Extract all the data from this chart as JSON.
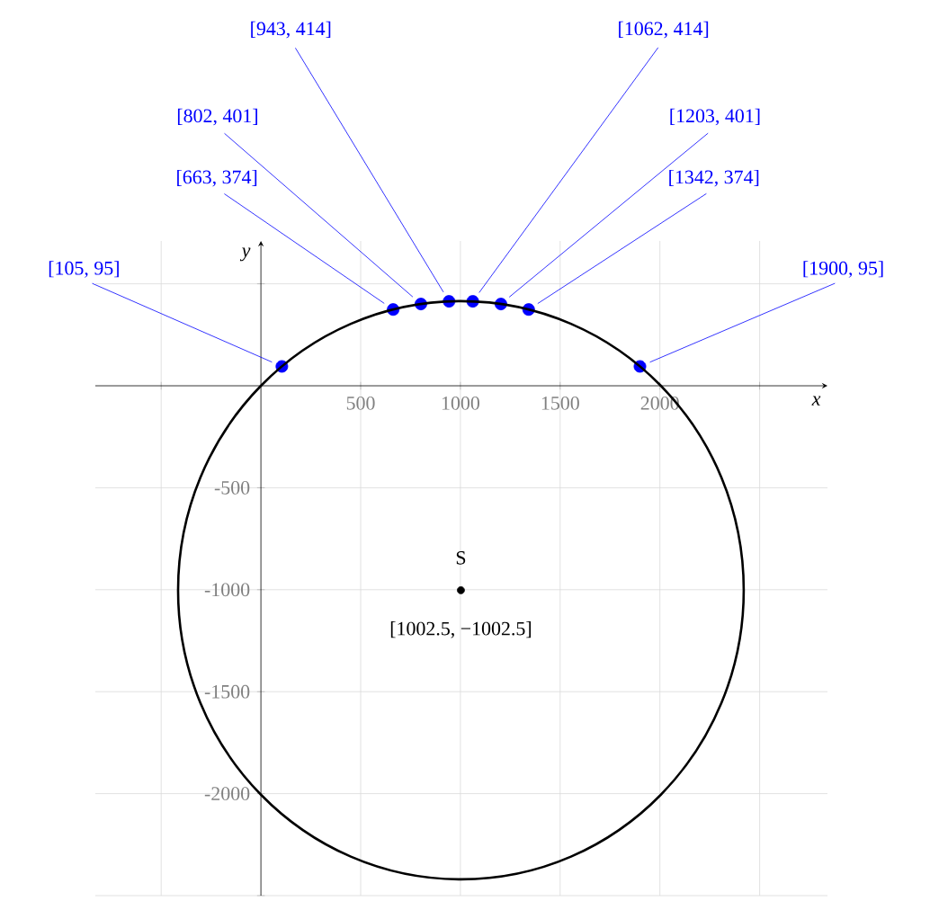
{
  "chart_data": {
    "type": "scatter",
    "xlabel": "x",
    "ylabel": "y",
    "xlim": [
      -830,
      2840
    ],
    "ylim": [
      -2500,
      710
    ],
    "xticks": [
      {
        "value": -500,
        "label": null
      },
      {
        "value": 0,
        "label": null
      },
      500,
      1000,
      1500,
      2000,
      {
        "value": 2500,
        "label": null
      }
    ],
    "yticks": [
      {
        "value": -2500,
        "label": null
      },
      -2000,
      -1500,
      -1000,
      -500,
      {
        "value": 0,
        "label": null
      },
      {
        "value": 500,
        "label": null
      }
    ],
    "grid": true,
    "marker": "circle",
    "series": [
      {
        "color": "#0000ff",
        "x": [
          105,
          663,
          802,
          943,
          1062,
          1203,
          1342,
          1900
        ],
        "values": [
          95,
          374,
          401,
          414,
          414,
          401,
          374,
          95
        ]
      },
      {
        "color": "#000000",
        "x": [
          1002.5
        ],
        "values": [
          -1002.5
        ]
      }
    ],
    "annotations": [
      {
        "text": "[105, 95]",
        "x": 105,
        "y": 95
      },
      {
        "text": "[663, 374]",
        "x": 663,
        "y": 374
      },
      {
        "text": "[802, 401]",
        "x": 802,
        "y": 401
      },
      {
        "text": "[943, 414]",
        "x": 943,
        "y": 414
      },
      {
        "text": "[1062, 414]",
        "x": 1062,
        "y": 414
      },
      {
        "text": "[1203, 401]",
        "x": 1203,
        "y": 401
      },
      {
        "text": "[1342, 374]",
        "x": 1342,
        "y": 374
      },
      {
        "text": "[1900, 95]",
        "x": 1900,
        "y": 95
      },
      {
        "text": "S",
        "x": 1002.5,
        "y": -1002.5
      },
      {
        "text": "[1002.5, −1002.5]",
        "x": 1002.5,
        "y": -1002.5
      }
    ]
  }
}
